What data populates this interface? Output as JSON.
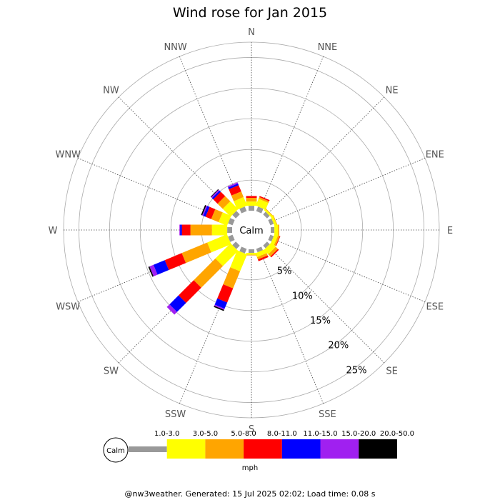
{
  "chart_data": {
    "type": "windrose",
    "title": "Wind rose for Jan 2015",
    "calm_label": "Calm",
    "unit": "mph",
    "directions": [
      "N",
      "NNE",
      "NE",
      "ENE",
      "E",
      "ESE",
      "SE",
      "SSE",
      "S",
      "SSW",
      "SW",
      "WSW",
      "W",
      "WNW",
      "NW",
      "NNW"
    ],
    "ring_labels": [
      "5%",
      "10%",
      "15%",
      "20%",
      "25%"
    ],
    "ring_max_percent": 27.5,
    "bins": [
      {
        "label": "1.0-3.0",
        "color": "#999999"
      },
      {
        "label": "3.0-5.0",
        "color": "#ffff00"
      },
      {
        "label": "5.0-8.0",
        "color": "#ffa500"
      },
      {
        "label": "8.0-11.0",
        "color": "#ff0000"
      },
      {
        "label": "11.0-15.0",
        "color": "#0000ff"
      },
      {
        "label": "15.0-20.0",
        "color": "#a020f0"
      },
      {
        "label": "20.0-50.0",
        "color": "#000000"
      }
    ],
    "series": [
      {
        "direction": "N",
        "values": [
          0.8,
          0.7,
          0.6,
          0.3,
          0.0,
          0.0,
          0.0
        ]
      },
      {
        "direction": "NNE",
        "values": [
          0.8,
          1.2,
          0.3,
          0.2,
          0.0,
          0.0,
          0.0
        ]
      },
      {
        "direction": "NE",
        "values": [
          0.6,
          0.3,
          0.1,
          0.0,
          0.0,
          0.0,
          0.0
        ]
      },
      {
        "direction": "ENE",
        "values": [
          0.6,
          0.4,
          0.1,
          0.0,
          0.0,
          0.0,
          0.0
        ]
      },
      {
        "direction": "E",
        "values": [
          0.6,
          0.6,
          0.2,
          0.0,
          0.0,
          0.0,
          0.0
        ]
      },
      {
        "direction": "ESE",
        "values": [
          0.6,
          0.6,
          0.3,
          0.1,
          0.0,
          0.0,
          0.0
        ]
      },
      {
        "direction": "SE",
        "values": [
          0.6,
          1.0,
          0.5,
          0.2,
          0.0,
          0.0,
          0.0
        ]
      },
      {
        "direction": "SSE",
        "values": [
          0.6,
          0.7,
          0.4,
          0.3,
          0.0,
          0.0,
          0.0
        ]
      },
      {
        "direction": "S",
        "values": [
          0.6,
          0.3,
          0.1,
          0.0,
          0.0,
          0.0,
          0.0
        ]
      },
      {
        "direction": "SSW",
        "values": [
          0.8,
          3.0,
          3.0,
          2.5,
          1.1,
          0.2,
          0.2
        ]
      },
      {
        "direction": "SW",
        "values": [
          0.8,
          3.5,
          5.0,
          3.5,
          2.1,
          0.6,
          0.0
        ]
      },
      {
        "direction": "WSW",
        "values": [
          0.8,
          3.5,
          4.5,
          3.0,
          2.0,
          0.7,
          0.2
        ]
      },
      {
        "direction": "W",
        "values": [
          0.8,
          2.5,
          3.5,
          1.4,
          0.3,
          0.1,
          0.0
        ]
      },
      {
        "direction": "WNW",
        "values": [
          0.8,
          1.5,
          1.3,
          1.0,
          0.4,
          0.2,
          0.2
        ]
      },
      {
        "direction": "NW",
        "values": [
          0.8,
          1.8,
          1.2,
          1.0,
          0.3,
          0.2,
          0.1
        ]
      },
      {
        "direction": "NNW",
        "values": [
          0.8,
          1.5,
          1.0,
          1.1,
          0.3,
          0.2,
          0.0
        ]
      }
    ],
    "footer": "@nw3weather. Generated: 15 Jul 2025 02:02; Load time: 0.08 s"
  }
}
